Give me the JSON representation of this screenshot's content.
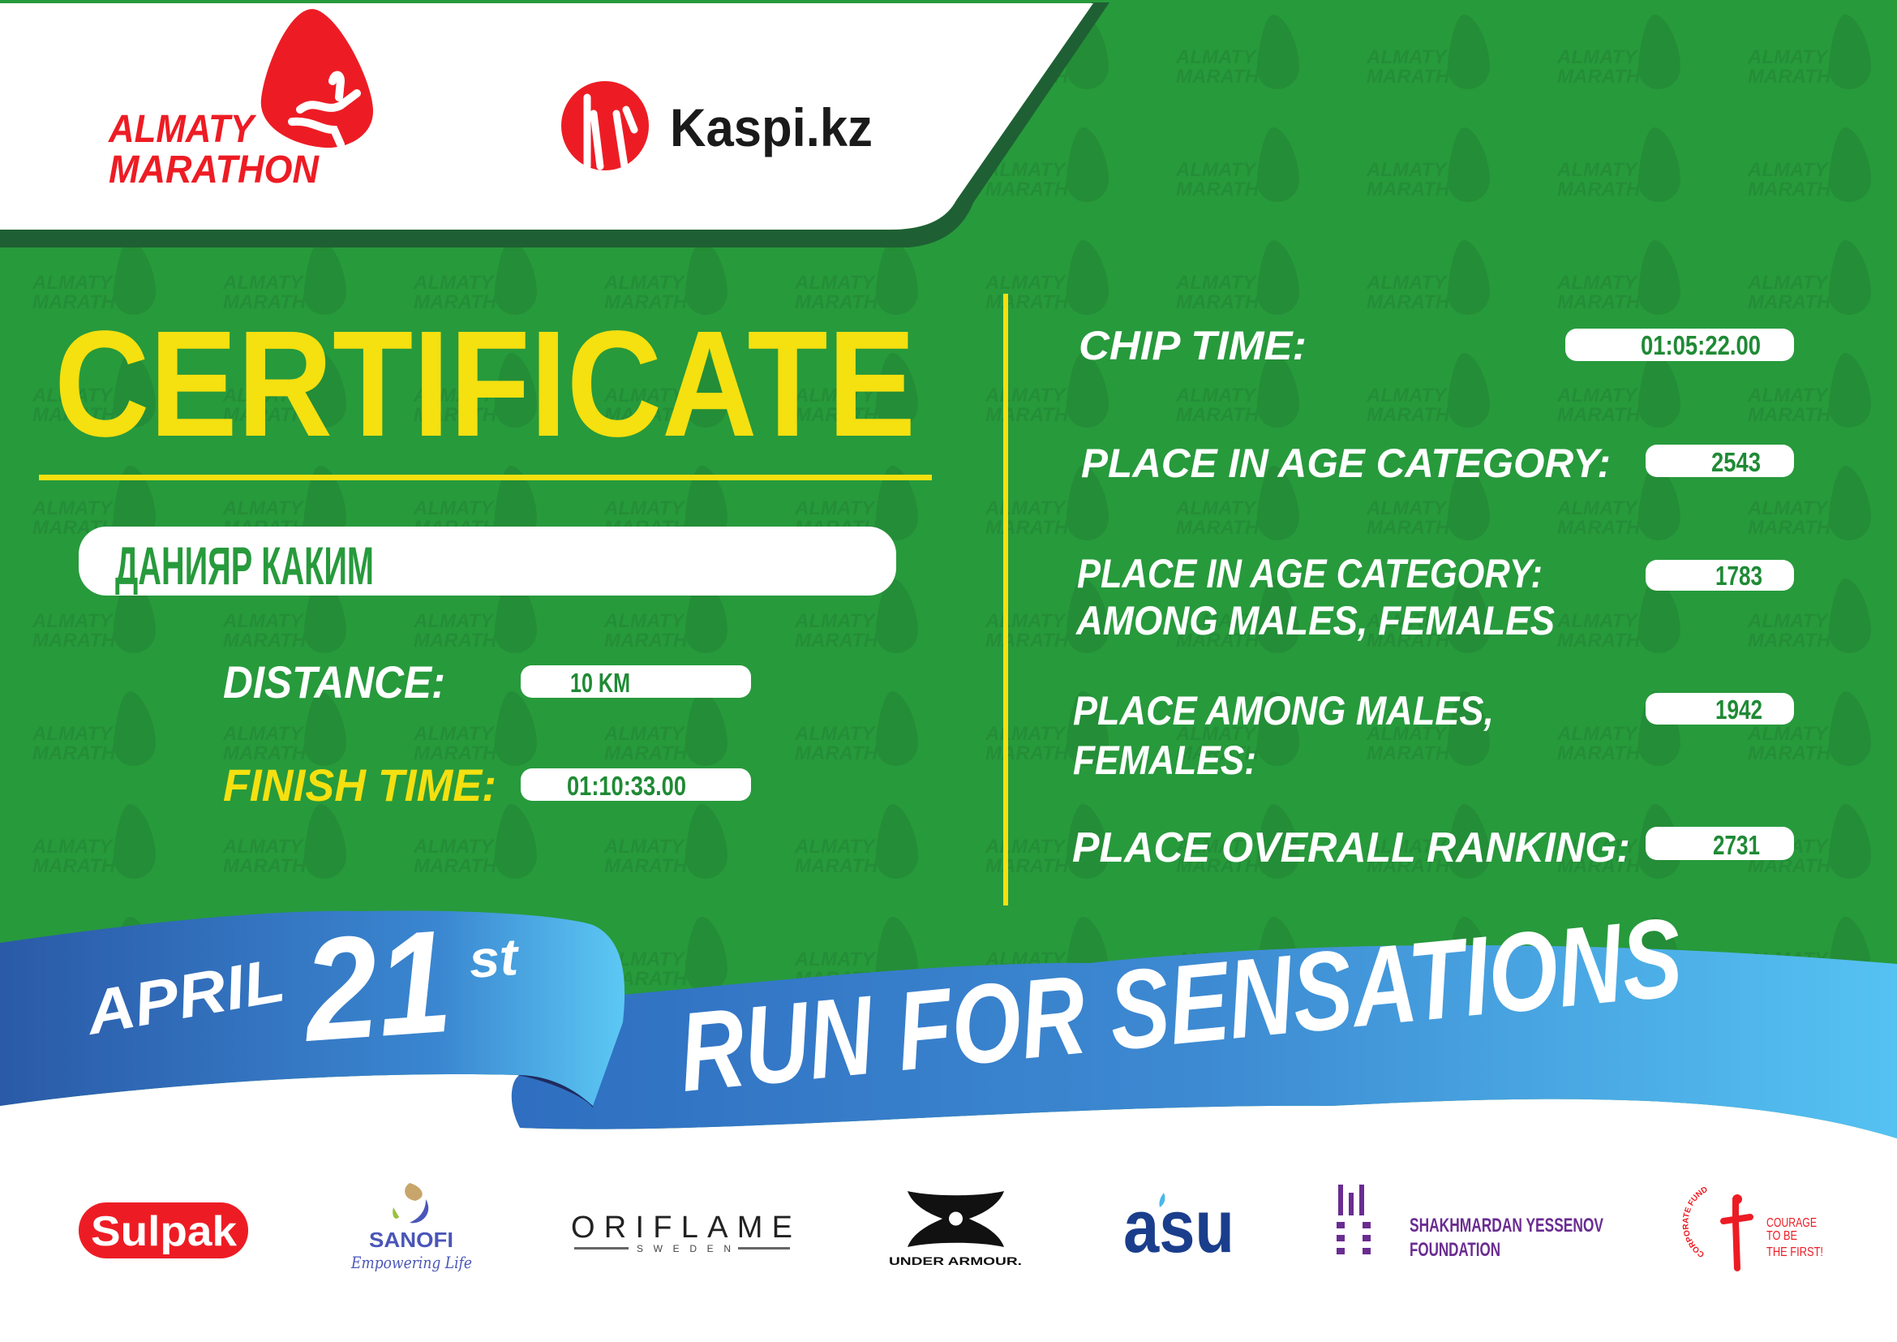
{
  "colors": {
    "background_green": "#279a3c",
    "dark_green": "#1e6033",
    "accent_yellow": "#f5e010",
    "brand_red": "#ed1c24",
    "ribbon_blue_dark": "#2a5fae",
    "ribbon_blue_light": "#55c2f2",
    "value_text_green": "#1f8a35"
  },
  "watermark_text": [
    "ALMATY",
    "MARATHON"
  ],
  "header": {
    "event_logo": {
      "line1": "ALMATY",
      "line2": "MARATHON",
      "icon": "runner-drop-icon"
    },
    "sponsor_logo": {
      "text": "Kaspi.kz",
      "icon": "kaspi-people-icon"
    }
  },
  "certificate": {
    "title": "CERTIFICATE",
    "participant_name": "ДАНИЯР КАКИМ",
    "distance": {
      "label": "DISTANCE:",
      "value": "10 KM"
    },
    "finish_time": {
      "label": "FINISH TIME:",
      "value": "01:10:33.00"
    }
  },
  "results": {
    "chip_time": {
      "label": "CHIP TIME:",
      "value": "01:05:22.00"
    },
    "place_age_category": {
      "label": "PLACE IN AGE CATEGORY:",
      "value": "2543"
    },
    "place_age_category_gender": {
      "label_line1": "PLACE IN AGE CATEGORY:",
      "label_line2": "AMONG MALES, FEMALES",
      "value": "1783"
    },
    "place_gender": {
      "label_line1": "PLACE AMONG MALES,",
      "label_line2": "FEMALES:",
      "value": "1942"
    },
    "place_overall": {
      "label": "PLACE OVERALL RANKING:",
      "value": "2731"
    }
  },
  "ribbon": {
    "month": "APRIL",
    "day": "21",
    "day_suffix": "st",
    "slogan": "RUN FOR SENSATIONS"
  },
  "sponsors": {
    "sulpak": "Sulpak",
    "sanofi": {
      "name": "SANOFI",
      "tagline": "Empowering Life"
    },
    "oriflame": {
      "name": "ORIFLAME",
      "sub": "SWEDEN"
    },
    "under_armour": "UNDER ARMOUR.",
    "asu": "asu",
    "yessenov": {
      "line1": "SHAKHMARDAN YESSENOV",
      "line2": "FOUNDATION"
    },
    "courage": {
      "arc": "CORPORATE FUND",
      "line1": "COURAGE",
      "line2": "TO BE",
      "line3": "THE FIRST!"
    }
  }
}
